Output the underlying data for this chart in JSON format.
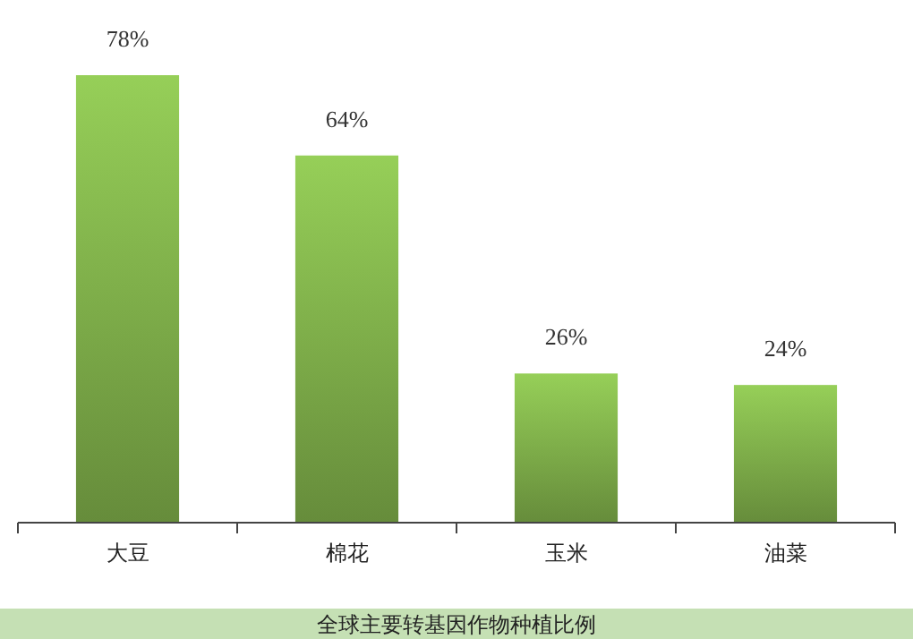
{
  "chart_data": {
    "type": "bar",
    "title": "全球主要转基因作物种植比例",
    "categories": [
      "大豆",
      "棉花",
      "玉米",
      "油菜"
    ],
    "values": [
      78,
      64,
      26,
      24
    ],
    "value_labels": [
      "78%",
      "64%",
      "26%",
      "24%"
    ],
    "color": "#8cc152"
  }
}
